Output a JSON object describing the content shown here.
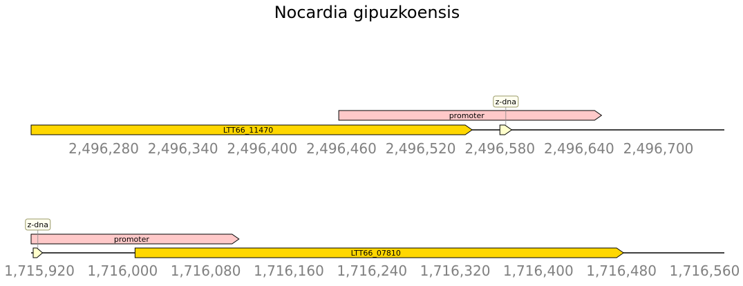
{
  "title": "Nocardia gipuzkoensis",
  "colors": {
    "gene": "#ffd700",
    "promoter": "#ffc9c9",
    "zdna": "#ffffcc",
    "tick_text": "#808080",
    "line": "#000000"
  },
  "tracks": [
    {
      "id": "track-1",
      "range": [
        2496225,
        2496750
      ],
      "ticks": [
        "2,496,280",
        "2,496,340",
        "2,496,400",
        "2,496,460",
        "2,496,520",
        "2,496,580",
        "2,496,640",
        "2,496,700"
      ],
      "tick_values": [
        2496280,
        2496340,
        2496400,
        2496460,
        2496520,
        2496580,
        2496640,
        2496700
      ],
      "features": [
        {
          "type": "gene",
          "label": "LTT66_11470",
          "start": 2496225,
          "end": 2496559,
          "strand": 1
        },
        {
          "type": "promoter",
          "label": "promoter",
          "start": 2496458,
          "end": 2496657,
          "strand": 1
        },
        {
          "type": "z-dna",
          "label": "z-dna",
          "start": 2496580,
          "end": 2496589,
          "strand": 1
        }
      ]
    },
    {
      "id": "track-2",
      "range": [
        1715912,
        1716579
      ],
      "ticks": [
        "1,715,920",
        "1,716,000",
        "1,716,080",
        "1,716,160",
        "1,716,240",
        "1,716,320",
        "1,716,400",
        "1,716,480",
        "1,716,560"
      ],
      "tick_values": [
        1715920,
        1716000,
        1716080,
        1716160,
        1716240,
        1716320,
        1716400,
        1716480,
        1716560
      ],
      "features": [
        {
          "type": "z-dna",
          "label": "z-dna",
          "start": 1715914,
          "end": 1715923,
          "strand": 1
        },
        {
          "type": "promoter",
          "label": "promoter",
          "start": 1715912,
          "end": 1716112,
          "strand": 1
        },
        {
          "type": "gene",
          "label": "LTT66_07810",
          "start": 1716012,
          "end": 1716482,
          "strand": 1
        }
      ]
    }
  ]
}
